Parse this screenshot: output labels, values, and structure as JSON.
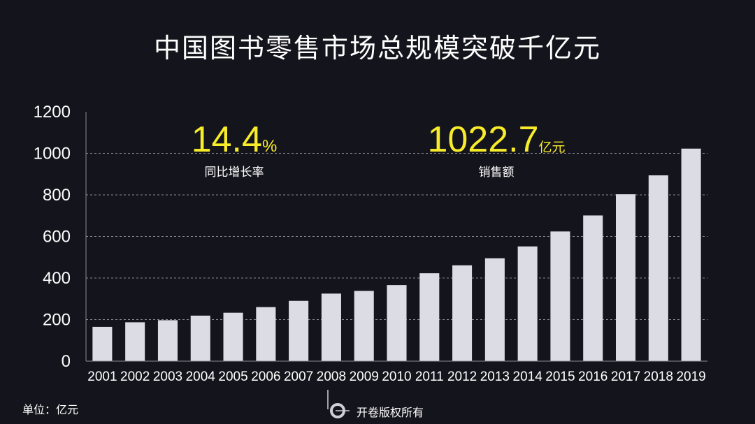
{
  "title": "中国图书零售市场总规模突破千亿元",
  "kpis": [
    {
      "value": "14.4",
      "unit": "%",
      "label": "同比增长率"
    },
    {
      "value": "1022.7",
      "unit": "亿元",
      "label": "销售额"
    }
  ],
  "unit_note": "单位：亿元",
  "watermark": "开卷版权所有",
  "chart_data": {
    "type": "bar",
    "categories": [
      "2001",
      "2002",
      "2003",
      "2004",
      "2005",
      "2006",
      "2007",
      "2008",
      "2009",
      "2010",
      "2011",
      "2012",
      "2013",
      "2014",
      "2015",
      "2016",
      "2017",
      "2018",
      "2019"
    ],
    "values": [
      165,
      187,
      197,
      219,
      233,
      260,
      290,
      325,
      338,
      366,
      423,
      461,
      495,
      552,
      624,
      701,
      803,
      894,
      1022.7
    ],
    "ylim": [
      0,
      1200
    ],
    "yticks": [
      0,
      200,
      400,
      600,
      800,
      1000,
      1200
    ],
    "grid": true,
    "bar_color": "#dcdce4"
  }
}
